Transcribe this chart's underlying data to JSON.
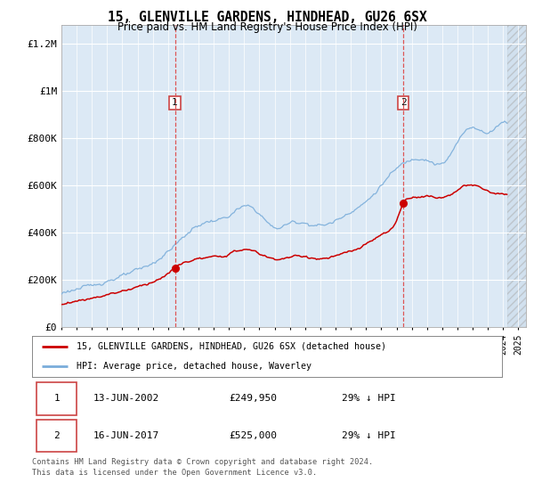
{
  "title": "15, GLENVILLE GARDENS, HINDHEAD, GU26 6SX",
  "subtitle": "Price paid vs. HM Land Registry's House Price Index (HPI)",
  "background_color": "#ffffff",
  "plot_bg_color": "#dce9f5",
  "ylabel_ticks": [
    "£0",
    "£200K",
    "£400K",
    "£600K",
    "£800K",
    "£1M",
    "£1.2M"
  ],
  "ytick_values": [
    0,
    200000,
    400000,
    600000,
    800000,
    1000000,
    1200000
  ],
  "ylim": [
    0,
    1280000
  ],
  "xlim_start": 1995.0,
  "xlim_end": 2025.5,
  "hatch_start": 2024.25,
  "legend_line1": "15, GLENVILLE GARDENS, HINDHEAD, GU26 6SX (detached house)",
  "legend_line2": "HPI: Average price, detached house, Waverley",
  "line1_color": "#cc0000",
  "line2_color": "#7aadda",
  "marker1_date": 2002.45,
  "marker1_value": 249950,
  "marker1_label": "1",
  "marker2_date": 2017.45,
  "marker2_value": 525000,
  "marker2_label": "2",
  "table_row1": [
    "1",
    "13-JUN-2002",
    "£249,950",
    "29% ↓ HPI"
  ],
  "table_row2": [
    "2",
    "16-JUN-2017",
    "£525,000",
    "29% ↓ HPI"
  ],
  "footnote": "Contains HM Land Registry data © Crown copyright and database right 2024.\nThis data is licensed under the Open Government Licence v3.0.",
  "vline1_x": 2002.45,
  "vline2_x": 2017.45,
  "grid_color": "#ffffff",
  "spine_color": "#aaaaaa"
}
